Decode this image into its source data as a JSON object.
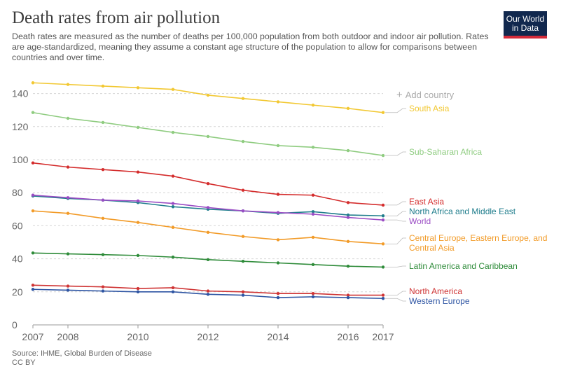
{
  "header": {
    "title": "Death rates from air pollution",
    "subtitle": "Death rates are measured as the number of deaths per 100,000 population from both outdoor and indoor air pollution. Rates are age-standardized, meaning they assume a constant age structure of the population to allow for comparisons between countries and over time."
  },
  "logo": {
    "line1": "Our World",
    "line2": "in Data"
  },
  "controls": {
    "add_country": "Add country"
  },
  "footer": {
    "source": "Source: IHME, Global Burden of Disease",
    "license": "CC BY"
  },
  "chart_data": {
    "type": "line",
    "title": "Death rates from air pollution",
    "x": [
      2007,
      2008,
      2009,
      2010,
      2011,
      2012,
      2013,
      2014,
      2015,
      2016,
      2017
    ],
    "xticks": [
      2007,
      2008,
      2010,
      2012,
      2014,
      2016,
      2017
    ],
    "yticks": [
      0,
      20,
      40,
      60,
      80,
      100,
      120,
      140
    ],
    "ylim": [
      0,
      150
    ],
    "xlim": [
      2007,
      2017
    ],
    "grid": "horizontal dotted",
    "legend": "right end labels",
    "series": [
      {
        "name": "South Asia",
        "color": "#f2c832",
        "values": [
          146.5,
          145.5,
          144.5,
          143.5,
          142.5,
          139,
          137,
          135,
          133,
          131,
          128.5
        ]
      },
      {
        "name": "Sub-Saharan Africa",
        "color": "#8fcc80",
        "values": [
          128.5,
          125,
          122.5,
          119.5,
          116.5,
          114,
          111,
          108.5,
          107.5,
          105.5,
          102.5
        ]
      },
      {
        "name": "East Asia",
        "color": "#d42d2d",
        "values": [
          98,
          95.5,
          94,
          92.5,
          90,
          85.5,
          81.5,
          79,
          78.5,
          74,
          72.5
        ]
      },
      {
        "name": "North Africa and Middle East",
        "color": "#1f7d8c",
        "values": [
          78,
          76.5,
          75.5,
          74,
          71.5,
          70,
          69,
          67.5,
          68.5,
          66.5,
          66
        ]
      },
      {
        "name": "World",
        "color": "#9a4cc4",
        "values": [
          78.5,
          77,
          75.5,
          75,
          73.5,
          71,
          69,
          68,
          67,
          65,
          63.5
        ]
      },
      {
        "name": "Central Europe, Eastern Europe, and Central Asia",
        "color": "#f29b28",
        "values": [
          69,
          67.5,
          64.5,
          62,
          59,
          56,
          53.5,
          51.5,
          53,
          50.5,
          49
        ]
      },
      {
        "name": "Latin America and Caribbean",
        "color": "#2e8b39",
        "values": [
          43.5,
          43,
          42.5,
          42,
          41,
          39.5,
          38.5,
          37.5,
          36.5,
          35.5,
          35
        ]
      },
      {
        "name": "North America",
        "color": "#cf3434",
        "values": [
          24,
          23.5,
          23,
          22,
          22.5,
          20.5,
          20,
          19,
          19,
          18,
          18
        ]
      },
      {
        "name": "Western Europe",
        "color": "#2e55a3",
        "values": [
          21.5,
          21,
          20.5,
          20,
          20,
          18.5,
          18,
          16.5,
          17,
          16.5,
          16
        ]
      }
    ],
    "labels": [
      {
        "series": "South Asia",
        "lines": [
          "South Asia"
        ]
      },
      {
        "series": "Sub-Saharan Africa",
        "lines": [
          "Sub-Saharan Africa"
        ]
      },
      {
        "series": "East Asia",
        "lines": [
          "East Asia"
        ]
      },
      {
        "series": "North Africa and Middle East",
        "lines": [
          "North Africa and Middle East"
        ]
      },
      {
        "series": "World",
        "lines": [
          "World"
        ]
      },
      {
        "series": "Central Europe, Eastern Europe, and Central Asia",
        "lines": [
          "Central Europe, Eastern Europe, and",
          "Central Asia"
        ]
      },
      {
        "series": "Latin America and Caribbean",
        "lines": [
          "Latin America and Caribbean"
        ]
      },
      {
        "series": "North America",
        "lines": [
          "North America"
        ]
      },
      {
        "series": "Western Europe",
        "lines": [
          "Western Europe"
        ]
      }
    ]
  }
}
